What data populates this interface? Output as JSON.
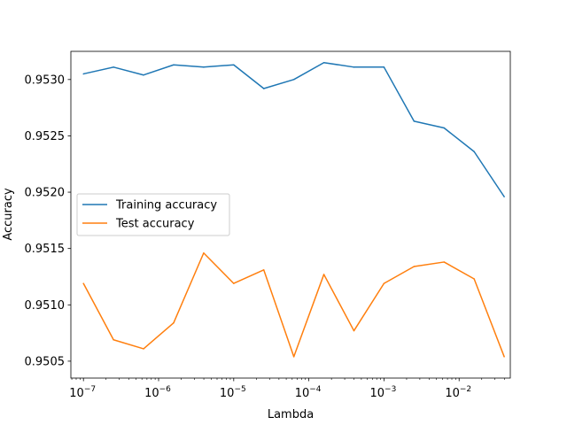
{
  "chart_data": {
    "type": "line",
    "xlabel": "Lambda",
    "ylabel": "Accuracy",
    "x_scale": "log",
    "xlim": [
      6.8e-08,
      0.048
    ],
    "ylim": [
      0.95035,
      0.95325
    ],
    "grid": false,
    "legend_position": "center-left",
    "x": [
      1e-07,
      2.512e-07,
      6.31e-07,
      1.585e-06,
      3.981e-06,
      1e-05,
      2.512e-05,
      6.31e-05,
      0.0001585,
      0.0003981,
      0.001,
      0.002512,
      0.00631,
      0.01585,
      0.03981
    ],
    "series": [
      {
        "name": "Training accuracy",
        "color": "#1f77b4",
        "values": [
          0.95305,
          0.95311,
          0.95304,
          0.95313,
          0.95311,
          0.95313,
          0.95292,
          0.953,
          0.95315,
          0.95311,
          0.95311,
          0.95263,
          0.95257,
          0.95236,
          0.95196
        ]
      },
      {
        "name": "Test accuracy",
        "color": "#ff7f0e",
        "values": [
          0.95119,
          0.95069,
          0.95061,
          0.95084,
          0.95146,
          0.95119,
          0.95131,
          0.95054,
          0.95127,
          0.95077,
          0.95119,
          0.95134,
          0.95138,
          0.95123,
          0.95054
        ]
      }
    ],
    "x_ticks": [
      {
        "value": 1e-07,
        "base": "10",
        "exp": "−7"
      },
      {
        "value": 1e-06,
        "base": "10",
        "exp": "−6"
      },
      {
        "value": 1e-05,
        "base": "10",
        "exp": "−5"
      },
      {
        "value": 0.0001,
        "base": "10",
        "exp": "−4"
      },
      {
        "value": 0.001,
        "base": "10",
        "exp": "−3"
      },
      {
        "value": 0.01,
        "base": "10",
        "exp": "−2"
      }
    ],
    "y_ticks": [
      {
        "value": 0.9505,
        "label": "0.9505"
      },
      {
        "value": 0.951,
        "label": "0.9510"
      },
      {
        "value": 0.9515,
        "label": "0.9515"
      },
      {
        "value": 0.952,
        "label": "0.9520"
      },
      {
        "value": 0.9525,
        "label": "0.9525"
      },
      {
        "value": 0.953,
        "label": "0.9530"
      }
    ]
  }
}
